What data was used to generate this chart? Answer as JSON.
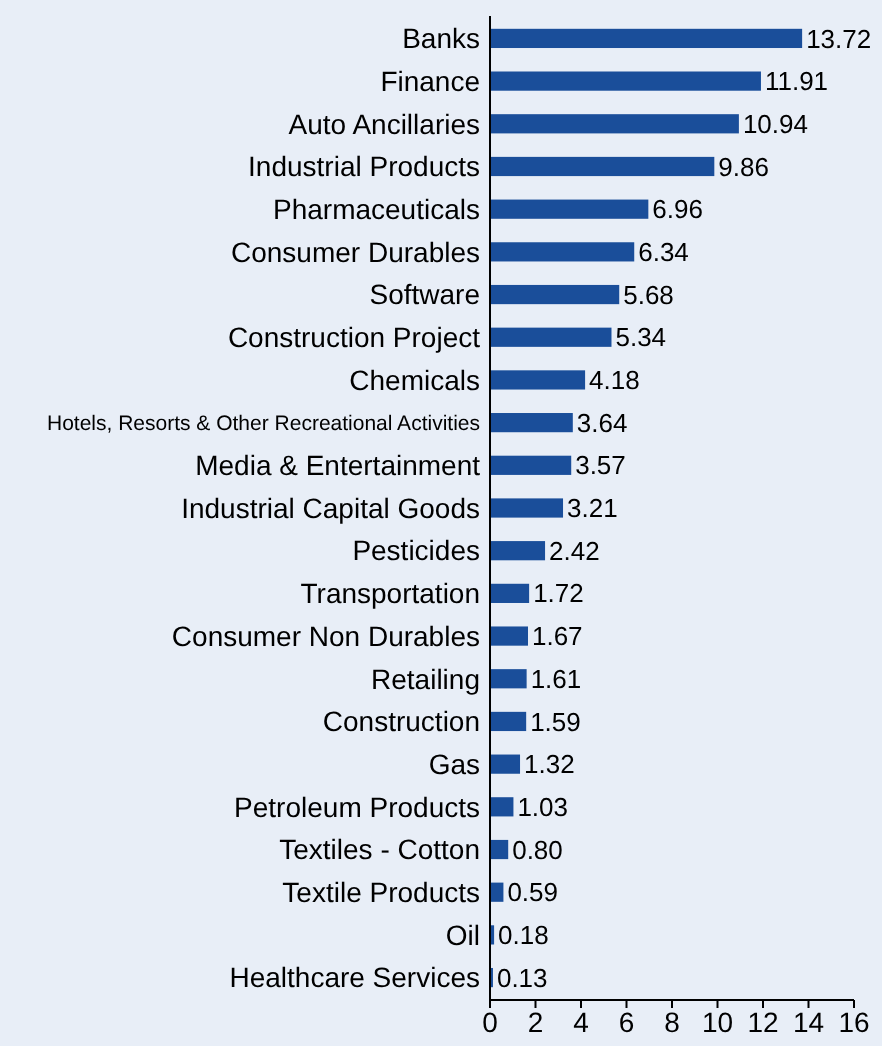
{
  "chart_data": {
    "type": "bar",
    "orientation": "horizontal",
    "categories": [
      "Banks",
      "Finance",
      "Auto Ancillaries",
      "Industrial Products",
      "Pharmaceuticals",
      "Consumer Durables",
      "Software",
      "Construction Project",
      "Chemicals",
      "Hotels, Resorts & Other Recreational Activities",
      "Media & Entertainment",
      "Industrial Capital Goods",
      "Pesticides",
      "Transportation",
      "Consumer Non Durables",
      "Retailing",
      "Construction",
      "Gas",
      "Petroleum Products",
      "Textiles - Cotton",
      "Textile Products",
      "Oil",
      "Healthcare Services"
    ],
    "values": [
      13.72,
      11.91,
      10.94,
      9.86,
      6.96,
      6.34,
      5.68,
      5.34,
      4.18,
      3.64,
      3.57,
      3.21,
      2.42,
      1.72,
      1.67,
      1.61,
      1.59,
      1.32,
      1.03,
      0.8,
      0.59,
      0.18,
      0.13
    ],
    "value_labels": [
      "13.72",
      "11.91",
      "10.94",
      "9.86",
      "6.96",
      "6.34",
      "5.68",
      "5.34",
      "4.18",
      "3.64",
      "3.57",
      "3.21",
      "2.42",
      "1.72",
      "1.67",
      "1.61",
      "1.59",
      "1.32",
      "1.03",
      "0.80",
      "0.59",
      "0.18",
      "0.13"
    ],
    "color": "#1a4e9a",
    "xlim": [
      0,
      16
    ],
    "xticks": [
      0,
      2,
      4,
      6,
      8,
      10,
      12,
      14,
      16
    ],
    "grid": false
  }
}
